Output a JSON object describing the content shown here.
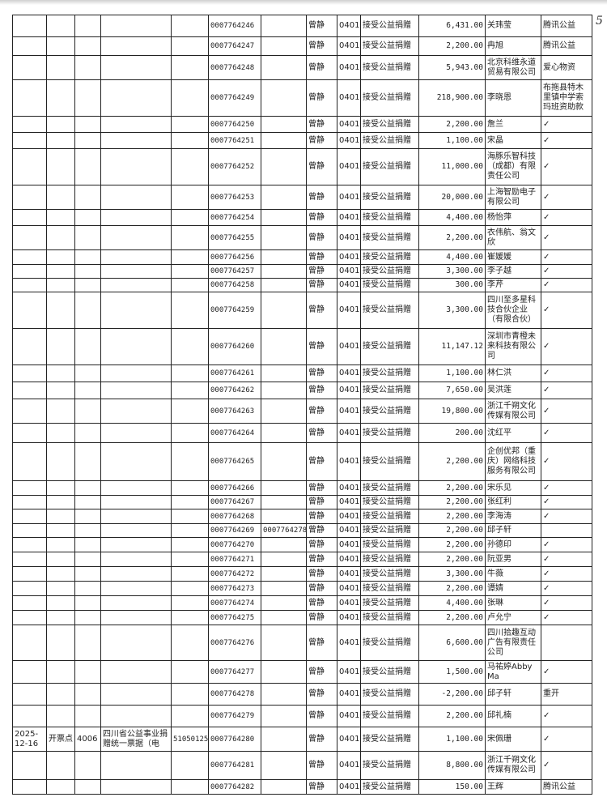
{
  "page_number": "5",
  "summary_row": {
    "date": "2025-12-16",
    "location": "开票点",
    "code": "4006",
    "invoice_type": "四川省公益事业捐赠统一票据（电",
    "region_code": "51050125"
  },
  "rows": [
    {
      "no": "0007764246",
      "ref": "",
      "person": "曾静",
      "subject": "0401",
      "desc": "接受公益捐赠",
      "amount": "6,431.00",
      "donor": "关玮莹",
      "note": "腾讯公益"
    },
    {
      "no": "0007764247",
      "ref": "",
      "person": "曾静",
      "subject": "0401",
      "desc": "接受公益捐赠",
      "amount": "2,200.00",
      "donor": "冉旭",
      "note": "腾讯公益"
    },
    {
      "no": "0007764248",
      "ref": "",
      "person": "曾静",
      "subject": "0401",
      "desc": "接受公益捐赠",
      "amount": "5,943.00",
      "donor": "北京科维永道贸易有限公司",
      "note": "爱心物资"
    },
    {
      "no": "0007764249",
      "ref": "",
      "person": "曾静",
      "subject": "0401",
      "desc": "接受公益捐赠",
      "amount": "218,900.00",
      "donor": "李晓恩",
      "note": "布拖县特木里镇中学索玛班资助款"
    },
    {
      "no": "0007764250",
      "ref": "",
      "person": "曾静",
      "subject": "0401",
      "desc": "接受公益捐赠",
      "amount": "2,200.00",
      "donor": "詹兰",
      "note": "✓"
    },
    {
      "no": "0007764251",
      "ref": "",
      "person": "曾静",
      "subject": "0401",
      "desc": "接受公益捐赠",
      "amount": "1,100.00",
      "donor": "宋晶",
      "note": "✓"
    },
    {
      "no": "0007764252",
      "ref": "",
      "person": "曾静",
      "subject": "0401",
      "desc": "接受公益捐赠",
      "amount": "11,000.00",
      "donor": "海豚乐智科技（成都）有限责任公司",
      "note": "✓"
    },
    {
      "no": "0007764253",
      "ref": "",
      "person": "曾静",
      "subject": "0401",
      "desc": "接受公益捐赠",
      "amount": "20,000.00",
      "donor": "上海智励电子有限公司",
      "note": "✓"
    },
    {
      "no": "0007764254",
      "ref": "",
      "person": "曾静",
      "subject": "0401",
      "desc": "接受公益捐赠",
      "amount": "4,400.00",
      "donor": "杨怡萍",
      "note": "✓"
    },
    {
      "no": "0007764255",
      "ref": "",
      "person": "曾静",
      "subject": "0401",
      "desc": "接受公益捐赠",
      "amount": "2,200.00",
      "donor": "衣伟航、翁文欣",
      "note": "✓"
    },
    {
      "no": "0007764256",
      "ref": "",
      "person": "曾静",
      "subject": "0401",
      "desc": "接受公益捐赠",
      "amount": "4,400.00",
      "donor": "崔媛媛",
      "note": "✓"
    },
    {
      "no": "0007764257",
      "ref": "",
      "person": "曾静",
      "subject": "0401",
      "desc": "接受公益捐赠",
      "amount": "3,300.00",
      "donor": "李子越",
      "note": "✓"
    },
    {
      "no": "0007764258",
      "ref": "",
      "person": "曾静",
      "subject": "0401",
      "desc": "接受公益捐赠",
      "amount": "300.00",
      "donor": "李芹",
      "note": "✓"
    },
    {
      "no": "0007764259",
      "ref": "",
      "person": "曾静",
      "subject": "0401",
      "desc": "接受公益捐赠",
      "amount": "3,300.00",
      "donor": "四川至多星科技合伙企业（有限合伙）",
      "note": "✓"
    },
    {
      "no": "0007764260",
      "ref": "",
      "person": "曾静",
      "subject": "0401",
      "desc": "接受公益捐赠",
      "amount": "11,147.12",
      "donor": "深圳市青橙未来科技有限公司",
      "note": "✓"
    },
    {
      "no": "0007764261",
      "ref": "",
      "person": "曾静",
      "subject": "0401",
      "desc": "接受公益捐赠",
      "amount": "1,100.00",
      "donor": "林仁洪",
      "note": "✓"
    },
    {
      "no": "0007764262",
      "ref": "",
      "person": "曾静",
      "subject": "0401",
      "desc": "接受公益捐赠",
      "amount": "7,650.00",
      "donor": "吴洪莲",
      "note": "✓"
    },
    {
      "no": "0007764263",
      "ref": "",
      "person": "曾静",
      "subject": "0401",
      "desc": "接受公益捐赠",
      "amount": "19,800.00",
      "donor": "浙江千朔文化传媒有限公司",
      "note": "✓"
    },
    {
      "no": "0007764264",
      "ref": "",
      "person": "曾静",
      "subject": "0401",
      "desc": "接受公益捐赠",
      "amount": "200.00",
      "donor": "沈红平",
      "note": "✓"
    },
    {
      "no": "0007764265",
      "ref": "",
      "person": "曾静",
      "subject": "0401",
      "desc": "接受公益捐赠",
      "amount": "2,200.00",
      "donor": "企创优邦（重庆）网络科技服务有限公司",
      "note": "✓"
    },
    {
      "no": "0007764266",
      "ref": "",
      "person": "曾静",
      "subject": "0401",
      "desc": "接受公益捐赠",
      "amount": "2,200.00",
      "donor": "宋乐见",
      "note": "✓"
    },
    {
      "no": "0007764267",
      "ref": "",
      "person": "曾静",
      "subject": "0401",
      "desc": "接受公益捐赠",
      "amount": "2,200.00",
      "donor": "张红利",
      "note": "✓"
    },
    {
      "no": "0007764268",
      "ref": "",
      "person": "曾静",
      "subject": "0401",
      "desc": "接受公益捐赠",
      "amount": "2,200.00",
      "donor": "李海涛",
      "note": "✓"
    },
    {
      "no": "0007764269",
      "ref": "0007764278",
      "person": "曾静",
      "subject": "0401",
      "desc": "接受公益捐赠",
      "amount": "2,200.00",
      "donor": "邱子轩",
      "note": ""
    },
    {
      "no": "0007764270",
      "ref": "",
      "person": "曾静",
      "subject": "0401",
      "desc": "接受公益捐赠",
      "amount": "2,200.00",
      "donor": "孙德印",
      "note": "✓"
    },
    {
      "no": "0007764271",
      "ref": "",
      "person": "曾静",
      "subject": "0401",
      "desc": "接受公益捐赠",
      "amount": "2,200.00",
      "donor": "阮亚男",
      "note": "✓"
    },
    {
      "no": "0007764272",
      "ref": "",
      "person": "曾静",
      "subject": "0401",
      "desc": "接受公益捐赠",
      "amount": "3,300.00",
      "donor": "牛薇",
      "note": "✓"
    },
    {
      "no": "0007764273",
      "ref": "",
      "person": "曾静",
      "subject": "0401",
      "desc": "接受公益捐赠",
      "amount": "2,200.00",
      "donor": "谭婧",
      "note": "✓"
    },
    {
      "no": "0007764274",
      "ref": "",
      "person": "曾静",
      "subject": "0401",
      "desc": "接受公益捐赠",
      "amount": "4,400.00",
      "donor": "张琳",
      "note": "✓"
    },
    {
      "no": "0007764275",
      "ref": "",
      "person": "曾静",
      "subject": "0401",
      "desc": "接受公益捐赠",
      "amount": "2,200.00",
      "donor": "卢允宁",
      "note": "✓"
    },
    {
      "no": "0007764276",
      "ref": "",
      "person": "曾静",
      "subject": "0401",
      "desc": "接受公益捐赠",
      "amount": "6,600.00",
      "donor": "四川拾趣互动广告有限责任公司",
      "note": ""
    },
    {
      "no": "0007764277",
      "ref": "",
      "person": "曾静",
      "subject": "0401",
      "desc": "接受公益捐赠",
      "amount": "1,500.00",
      "donor": "马祐婷Abby Ma",
      "note": "✓"
    },
    {
      "no": "0007764278",
      "ref": "",
      "person": "曾静",
      "subject": "0401",
      "desc": "接受公益捐赠",
      "amount": "-2,200.00",
      "donor": "邱子轩",
      "note": "重开"
    },
    {
      "no": "0007764279",
      "ref": "",
      "person": "曾静",
      "subject": "0401",
      "desc": "接受公益捐赠",
      "amount": "2,200.00",
      "donor": "邱礼楠",
      "note": "✓"
    },
    {
      "no": "0007764280",
      "ref": "",
      "person": "曾静",
      "subject": "0401",
      "desc": "接受公益捐赠",
      "amount": "1,100.00",
      "donor": "宋佩珊",
      "note": "✓"
    },
    {
      "no": "0007764281",
      "ref": "",
      "person": "曾静",
      "subject": "0401",
      "desc": "接受公益捐赠",
      "amount": "8,800.00",
      "donor": "浙江千朔文化传媒有限公司",
      "note": "✓"
    },
    {
      "no": "0007764282",
      "ref": "",
      "person": "曾静",
      "subject": "0401",
      "desc": "接受公益捐赠",
      "amount": "150.00",
      "donor": "王辉",
      "note": "腾讯公益"
    }
  ]
}
